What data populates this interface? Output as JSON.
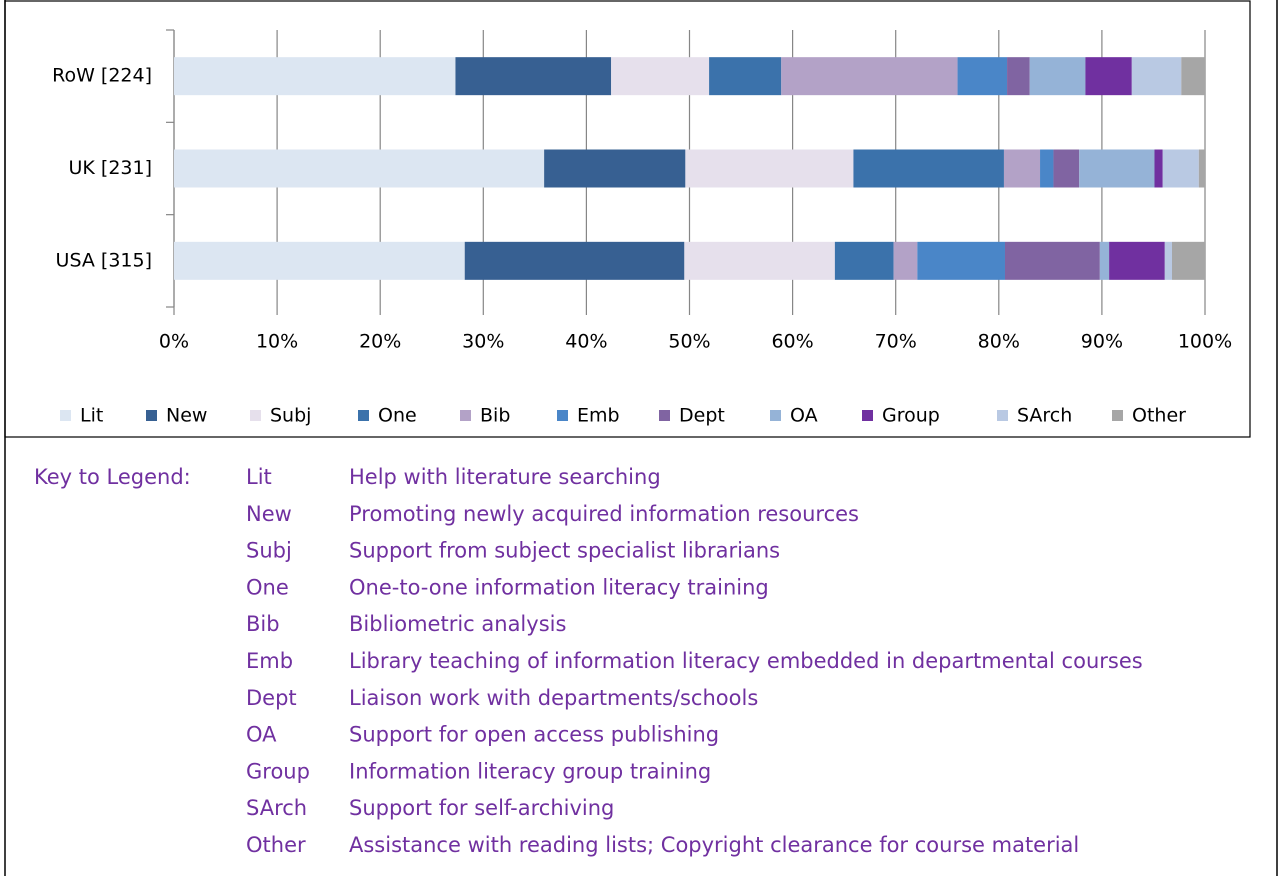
{
  "chart_data": {
    "type": "stacked-bar-horizontal",
    "categories": [
      "USA [315]",
      "UK [231]",
      "RoW [224]"
    ],
    "series": [
      {
        "name": "Lit",
        "color": "#dce6f2",
        "values": [
          28.2,
          35.9,
          27.3
        ]
      },
      {
        "name": "New",
        "color": "#376092",
        "values": [
          21.3,
          13.7,
          15.1
        ]
      },
      {
        "name": "Subj",
        "color": "#e6e0ec",
        "values": [
          14.6,
          16.3,
          9.5
        ]
      },
      {
        "name": "One",
        "color": "#3b72ab",
        "values": [
          5.7,
          14.6,
          7.0
        ]
      },
      {
        "name": "Bib",
        "color": "#b3a2c7",
        "values": [
          2.3,
          3.5,
          17.1
        ]
      },
      {
        "name": "Emb",
        "color": "#4a86c8",
        "values": [
          8.5,
          1.3,
          4.8
        ]
      },
      {
        "name": "Dept",
        "color": "#8064a2",
        "values": [
          9.2,
          2.5,
          2.2
        ]
      },
      {
        "name": "OA",
        "color": "#95b3d7",
        "values": [
          0.9,
          7.3,
          5.4
        ]
      },
      {
        "name": "Group",
        "color": "#7030a0",
        "values": [
          5.4,
          0.8,
          4.5
        ]
      },
      {
        "name": "SArch",
        "color": "#b9c9e3",
        "values": [
          0.7,
          3.5,
          4.8
        ]
      },
      {
        "name": "Other",
        "color": "#a6a6a6",
        "values": [
          3.2,
          0.6,
          2.3
        ]
      }
    ],
    "xlim": [
      0,
      100
    ],
    "xticks": [
      {
        "value": 0,
        "label": "0%"
      },
      {
        "value": 10,
        "label": "10%"
      },
      {
        "value": 20,
        "label": "20%"
      },
      {
        "value": 30,
        "label": "30%"
      },
      {
        "value": 40,
        "label": "40%"
      },
      {
        "value": 50,
        "label": "50%"
      },
      {
        "value": 60,
        "label": "60%"
      },
      {
        "value": 70,
        "label": "70%"
      },
      {
        "value": 80,
        "label": "80%"
      },
      {
        "value": 90,
        "label": "90%"
      },
      {
        "value": 100,
        "label": "100%"
      }
    ],
    "grid": true,
    "legend": "bottom"
  },
  "key": {
    "title": "Key to Legend:",
    "items": [
      {
        "code": "Lit",
        "description": "Help with literature searching"
      },
      {
        "code": "New",
        "description": "Promoting newly acquired information resources"
      },
      {
        "code": "Subj",
        "description": "Support from subject specialist librarians"
      },
      {
        "code": "One",
        "description": "One-to-one information literacy training"
      },
      {
        "code": "Bib",
        "description": "Bibliometric analysis"
      },
      {
        "code": "Emb",
        "description": "Library teaching of information literacy embedded in departmental courses"
      },
      {
        "code": "Dept",
        "description": "Liaison work with departments/schools"
      },
      {
        "code": "OA",
        "description": "Support for open access publishing"
      },
      {
        "code": "Group",
        "description": "Information literacy group training"
      },
      {
        "code": "SArch",
        "description": "Support for self-archiving"
      },
      {
        "code": "Other",
        "description": "Assistance with reading lists; Copyright clearance for course material"
      }
    ]
  }
}
